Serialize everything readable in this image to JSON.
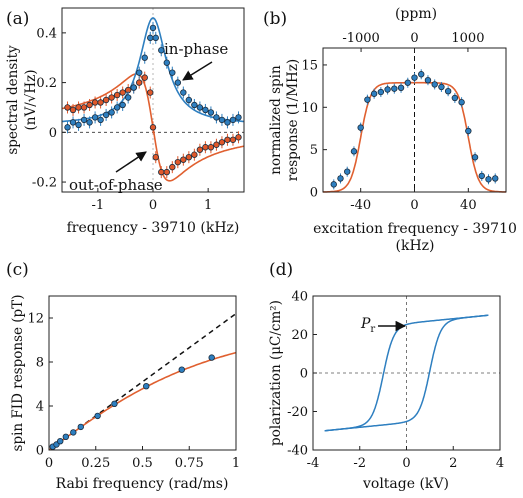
{
  "colors": {
    "blue": "#2e7fc0",
    "orange": "#e0582a",
    "fit_orange": "#e06030",
    "dark": "#1a2b3c"
  },
  "chart_data": [
    {
      "panel": "(a)",
      "type": "scatter",
      "xlabel": "frequency - 39710 (kHz)",
      "ylabel_line1": "spectral density",
      "ylabel_line2": "(nV/√Hz)",
      "xlim": [
        -1.65,
        1.65
      ],
      "ylim": [
        -0.24,
        0.5
      ],
      "xticks": [
        -1,
        0,
        1
      ],
      "xtick_labels": [
        "-1",
        "0",
        "1"
      ],
      "yticks": [
        -0.2,
        0,
        0.2,
        0.4
      ],
      "ytick_labels": [
        "-0.2",
        "0",
        "0.2",
        "0.4"
      ],
      "annotations": [
        {
          "text": "in-phase",
          "x": 0.5,
          "y": 0.37
        },
        {
          "text": "out-of-phase",
          "x": -0.92,
          "y": -0.23
        }
      ],
      "series": [
        {
          "name": "in-phase",
          "x": [
            -1.55,
            -1.45,
            -1.35,
            -1.25,
            -1.15,
            -1.05,
            -0.95,
            -0.85,
            -0.75,
            -0.65,
            -0.55,
            -0.45,
            -0.35,
            -0.25,
            -0.15,
            -0.05,
            0.0,
            0.05,
            0.15,
            0.25,
            0.35,
            0.45,
            0.55,
            0.65,
            0.75,
            0.85,
            0.95,
            1.05,
            1.15,
            1.25,
            1.35,
            1.45,
            1.55
          ],
          "y": [
            0.02,
            0.04,
            0.03,
            0.05,
            0.04,
            0.06,
            0.05,
            0.07,
            0.08,
            0.1,
            0.11,
            0.14,
            0.18,
            0.24,
            0.3,
            0.38,
            0.42,
            0.38,
            0.33,
            0.28,
            0.24,
            0.2,
            0.16,
            0.13,
            0.11,
            0.1,
            0.09,
            0.08,
            0.06,
            0.05,
            0.04,
            0.05,
            0.06
          ]
        },
        {
          "name": "out-of-phase",
          "x": [
            -1.55,
            -1.45,
            -1.35,
            -1.25,
            -1.15,
            -1.05,
            -0.95,
            -0.85,
            -0.75,
            -0.65,
            -0.55,
            -0.45,
            -0.35,
            -0.25,
            -0.15,
            -0.05,
            0.0,
            0.05,
            0.15,
            0.25,
            0.35,
            0.45,
            0.55,
            0.65,
            0.75,
            0.85,
            0.95,
            1.05,
            1.15,
            1.25,
            1.35,
            1.45,
            1.55
          ],
          "y": [
            0.1,
            0.09,
            0.1,
            0.1,
            0.11,
            0.12,
            0.12,
            0.13,
            0.14,
            0.15,
            0.16,
            0.17,
            0.18,
            0.2,
            0.22,
            0.16,
            0.02,
            -0.1,
            -0.16,
            -0.16,
            -0.14,
            -0.12,
            -0.11,
            -0.1,
            -0.09,
            -0.07,
            -0.06,
            -0.06,
            -0.05,
            -0.04,
            -0.03,
            -0.03,
            -0.02
          ]
        }
      ]
    },
    {
      "panel": "(b)",
      "type": "scatter",
      "xlabel_line1": "excitation frequency - 39710",
      "xlabel_line2": "(kHz)",
      "ylabel_line1": "normalized spin",
      "ylabel_line2": "response (1/MHz)",
      "top_label": "(ppm)",
      "xlim": [
        -68,
        68
      ],
      "ylim": [
        0,
        17
      ],
      "xticks": [
        -40,
        0,
        40
      ],
      "xtick_labels": [
        "-40",
        "0",
        "40"
      ],
      "top_ticks": [
        -1000,
        0,
        1000
      ],
      "top_tick_labels": [
        "-1000",
        "0",
        "1000"
      ],
      "yticks": [
        0,
        5,
        10,
        15
      ],
      "ytick_labels": [
        "0",
        "5",
        "10",
        "15"
      ],
      "points": {
        "x": [
          -60,
          -55,
          -50,
          -45,
          -40,
          -35,
          -30,
          -25,
          -20,
          -15,
          -10,
          -5,
          0,
          5,
          10,
          15,
          20,
          25,
          30,
          35,
          40,
          45,
          50,
          55,
          60
        ],
        "y": [
          0.9,
          1.6,
          2.4,
          4.8,
          7.6,
          10.9,
          11.6,
          11.8,
          12.1,
          12.2,
          12.3,
          12.9,
          13.5,
          13.9,
          13.2,
          12.7,
          12.4,
          11.9,
          11.1,
          10.6,
          7.2,
          4.1,
          1.9,
          1.5,
          1.6
        ]
      }
    },
    {
      "panel": "(c)",
      "type": "scatter",
      "xlabel": "Rabi frequency (rad/ms)",
      "ylabel": "spin FID response (pT)",
      "xlim": [
        0,
        1
      ],
      "ylim": [
        0,
        14
      ],
      "xticks": [
        0,
        0.25,
        0.5,
        0.75,
        1
      ],
      "xtick_labels": [
        "0",
        "0.25",
        "0.5",
        "0.75",
        "1"
      ],
      "yticks": [
        0,
        4,
        8,
        12
      ],
      "ytick_labels": [
        "0",
        "4",
        "8",
        "12"
      ],
      "points": {
        "x": [
          0.02,
          0.04,
          0.06,
          0.09,
          0.13,
          0.17,
          0.26,
          0.35,
          0.52,
          0.71,
          0.87
        ],
        "y": [
          0.3,
          0.5,
          0.8,
          1.2,
          1.6,
          2.1,
          3.1,
          4.2,
          5.8,
          7.3,
          8.4
        ]
      }
    },
    {
      "panel": "(d)",
      "type": "line",
      "xlabel": "voltage (kV)",
      "ylabel": "polarization (μC/cm²)",
      "xlim": [
        -4,
        4
      ],
      "ylim": [
        -40,
        40
      ],
      "xticks": [
        -4,
        -2,
        0,
        2,
        4
      ],
      "xtick_labels": [
        "-4",
        "-2",
        "0",
        "2",
        "4"
      ],
      "yticks": [
        -40,
        -20,
        0,
        20,
        40
      ],
      "ytick_labels": [
        "-40",
        "-20",
        "0",
        "20",
        "40"
      ],
      "annotation": "P",
      "annotation_sub": "r",
      "coercive_kV": 1.0,
      "max_voltage_kV": 3.5,
      "saturation": 30,
      "remanent": 24
    }
  ]
}
